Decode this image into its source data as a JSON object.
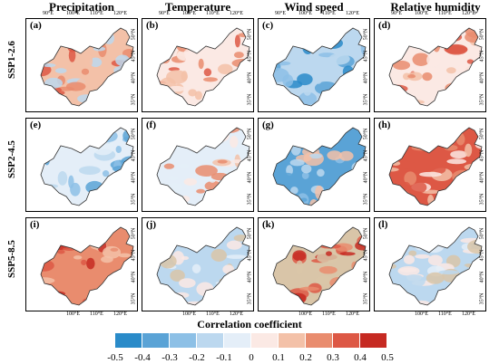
{
  "columns": [
    "Precipitation",
    "Temperature",
    "Wind speed",
    "Relative humidity"
  ],
  "rows": [
    "SSP1-2.6",
    "SSP2-4.5",
    "SSP5-8.5"
  ],
  "panel_labels": [
    "(a)",
    "(b)",
    "(c)",
    "(d)",
    "(e)",
    "(f)",
    "(g)",
    "(h)",
    "(i)",
    "(j)",
    "(k)",
    "(l)"
  ],
  "x_ticks": [
    "90°E",
    "100°E",
    "110°E",
    "120°E"
  ],
  "y_ticks": [
    "50°N",
    "45°N",
    "40°N",
    "35°N"
  ],
  "colorbar": {
    "title": "Correlation  coefficient",
    "labels": [
      "-0.5",
      "-0.4",
      "-0.3",
      "-0.2",
      "-0.1",
      "0",
      "0.1",
      "0.2",
      "0.3",
      "0.4",
      "0.5"
    ],
    "colors": [
      "#2a8bc9",
      "#5aa3d6",
      "#8dc0e6",
      "#bcd8ef",
      "#e4eef8",
      "#fbe9e4",
      "#f3c1a8",
      "#e98c6e",
      "#dd5845",
      "#c62a22"
    ]
  }
}
